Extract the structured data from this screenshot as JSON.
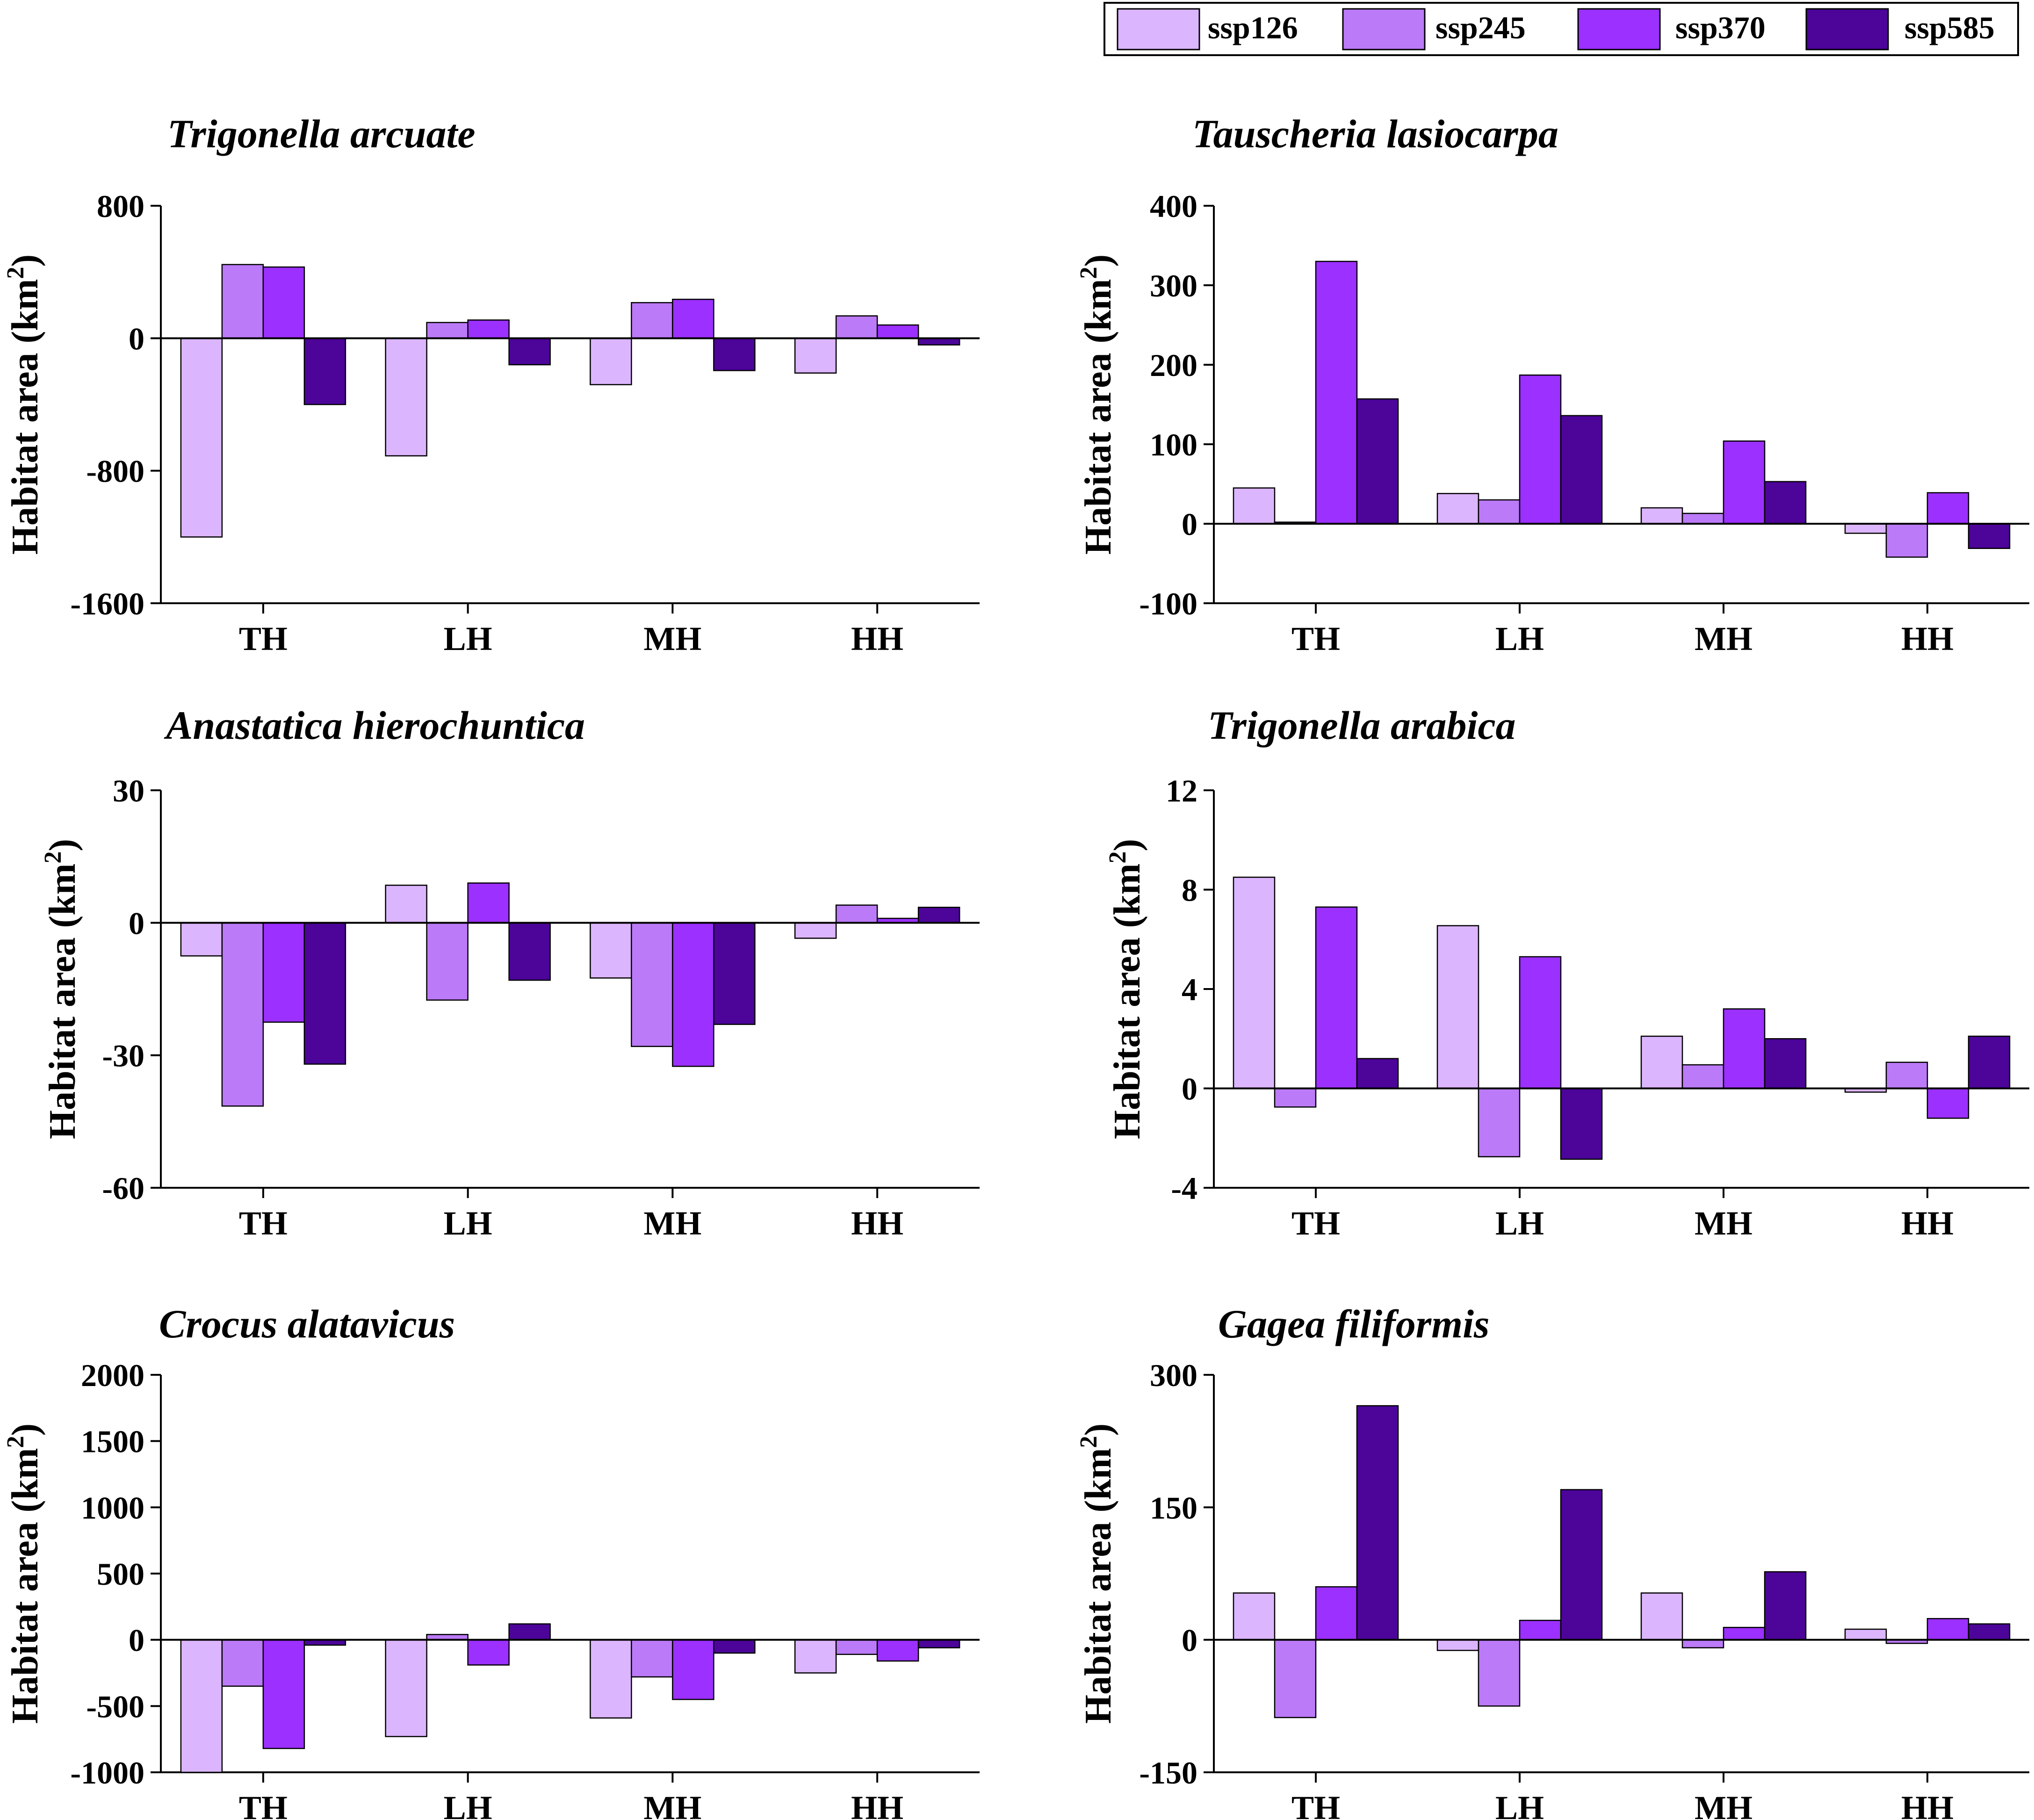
{
  "legend": {
    "items": [
      {
        "label": "ssp126",
        "color": "#dcb5ff"
      },
      {
        "label": "ssp245",
        "color": "#bb7af7"
      },
      {
        "label": "ssp370",
        "color": "#9b30ff"
      },
      {
        "label": "ssp585",
        "color": "#4c0499"
      }
    ]
  },
  "chart_data": [
    {
      "type": "bar",
      "title": "Trigonella arcuate",
      "ylabel": "Habitat area (km²)",
      "ylim": [
        -1600,
        800
      ],
      "yticks": [
        800,
        0,
        -800,
        -1600
      ],
      "categories": [
        "TH",
        "LH",
        "MH",
        "HH"
      ],
      "series": [
        {
          "name": "ssp126",
          "values": [
            -1200,
            -710,
            -280,
            -210
          ]
        },
        {
          "name": "ssp245",
          "values": [
            445,
            95,
            215,
            135
          ]
        },
        {
          "name": "ssp370",
          "values": [
            430,
            110,
            235,
            80
          ]
        },
        {
          "name": "ssp585",
          "values": [
            -400,
            -160,
            -195,
            -40
          ]
        }
      ]
    },
    {
      "type": "bar",
      "title": "Tauscheria lasiocarpa",
      "ylabel": "Habitat area (km²)",
      "ylim": [
        -100,
        400
      ],
      "yticks": [
        400,
        300,
        200,
        100,
        0,
        -100
      ],
      "categories": [
        "TH",
        "LH",
        "MH",
        "HH"
      ],
      "series": [
        {
          "name": "ssp126",
          "values": [
            45,
            38,
            20,
            -12
          ]
        },
        {
          "name": "ssp245",
          "values": [
            2,
            30,
            13,
            -42
          ]
        },
        {
          "name": "ssp370",
          "values": [
            330,
            187,
            104,
            39
          ]
        },
        {
          "name": "ssp585",
          "values": [
            157,
            136,
            53,
            -31
          ]
        }
      ]
    },
    {
      "type": "bar",
      "title": "Anastatica hierochuntica",
      "ylabel": "Habitat area (km²)",
      "ylim": [
        -60,
        30
      ],
      "yticks": [
        30,
        0,
        -30,
        -60
      ],
      "categories": [
        "TH",
        "LH",
        "MH",
        "HH"
      ],
      "series": [
        {
          "name": "ssp126",
          "values": [
            -7.5,
            8.5,
            -12.5,
            -3.5
          ]
        },
        {
          "name": "ssp245",
          "values": [
            -41.5,
            -17.5,
            -28,
            4
          ]
        },
        {
          "name": "ssp370",
          "values": [
            -22.5,
            9,
            -32.5,
            1
          ]
        },
        {
          "name": "ssp585",
          "values": [
            -32,
            -13,
            -23,
            3.5
          ]
        }
      ]
    },
    {
      "type": "bar",
      "title": "Trigonella arabica",
      "ylabel": "Habitat area (km²)",
      "ylim": [
        -4,
        12
      ],
      "yticks": [
        12,
        8,
        4,
        0,
        -4
      ],
      "categories": [
        "TH",
        "LH",
        "MH",
        "HH"
      ],
      "series": [
        {
          "name": "ssp126",
          "values": [
            8.5,
            6.55,
            2.1,
            -0.15
          ]
        },
        {
          "name": "ssp245",
          "values": [
            -0.75,
            -2.75,
            0.95,
            1.05
          ]
        },
        {
          "name": "ssp370",
          "values": [
            7.3,
            5.3,
            3.2,
            -1.2
          ]
        },
        {
          "name": "ssp585",
          "values": [
            1.2,
            -2.85,
            2.0,
            2.1
          ]
        }
      ]
    },
    {
      "type": "bar",
      "title": "Crocus alatavicus",
      "ylabel": "Habitat area (km²)",
      "ylim": [
        -1000,
        2000
      ],
      "yticks": [
        2000,
        1500,
        1000,
        500,
        0,
        -500,
        -1000
      ],
      "categories": [
        "TH",
        "LH",
        "MH",
        "HH"
      ],
      "series": [
        {
          "name": "ssp126",
          "values": [
            -1000,
            -730,
            -590,
            -250
          ]
        },
        {
          "name": "ssp245",
          "values": [
            -350,
            40,
            -280,
            -110
          ]
        },
        {
          "name": "ssp370",
          "values": [
            -820,
            -190,
            -450,
            -160
          ]
        },
        {
          "name": "ssp585",
          "values": [
            -40,
            120,
            -100,
            -60
          ]
        }
      ]
    },
    {
      "type": "bar",
      "title": "Gagea filiformis",
      "ylabel": "Habitat area (km²)",
      "ylim": [
        -150,
        300
      ],
      "yticks": [
        300,
        150,
        0,
        -150
      ],
      "categories": [
        "TH",
        "LH",
        "MH",
        "HH"
      ],
      "series": [
        {
          "name": "ssp126",
          "values": [
            53,
            -12,
            53,
            12
          ]
        },
        {
          "name": "ssp245",
          "values": [
            -88,
            -75,
            -9,
            -4
          ]
        },
        {
          "name": "ssp370",
          "values": [
            60,
            22,
            14,
            24
          ]
        },
        {
          "name": "ssp585",
          "values": [
            265,
            170,
            77,
            18
          ]
        }
      ]
    }
  ]
}
